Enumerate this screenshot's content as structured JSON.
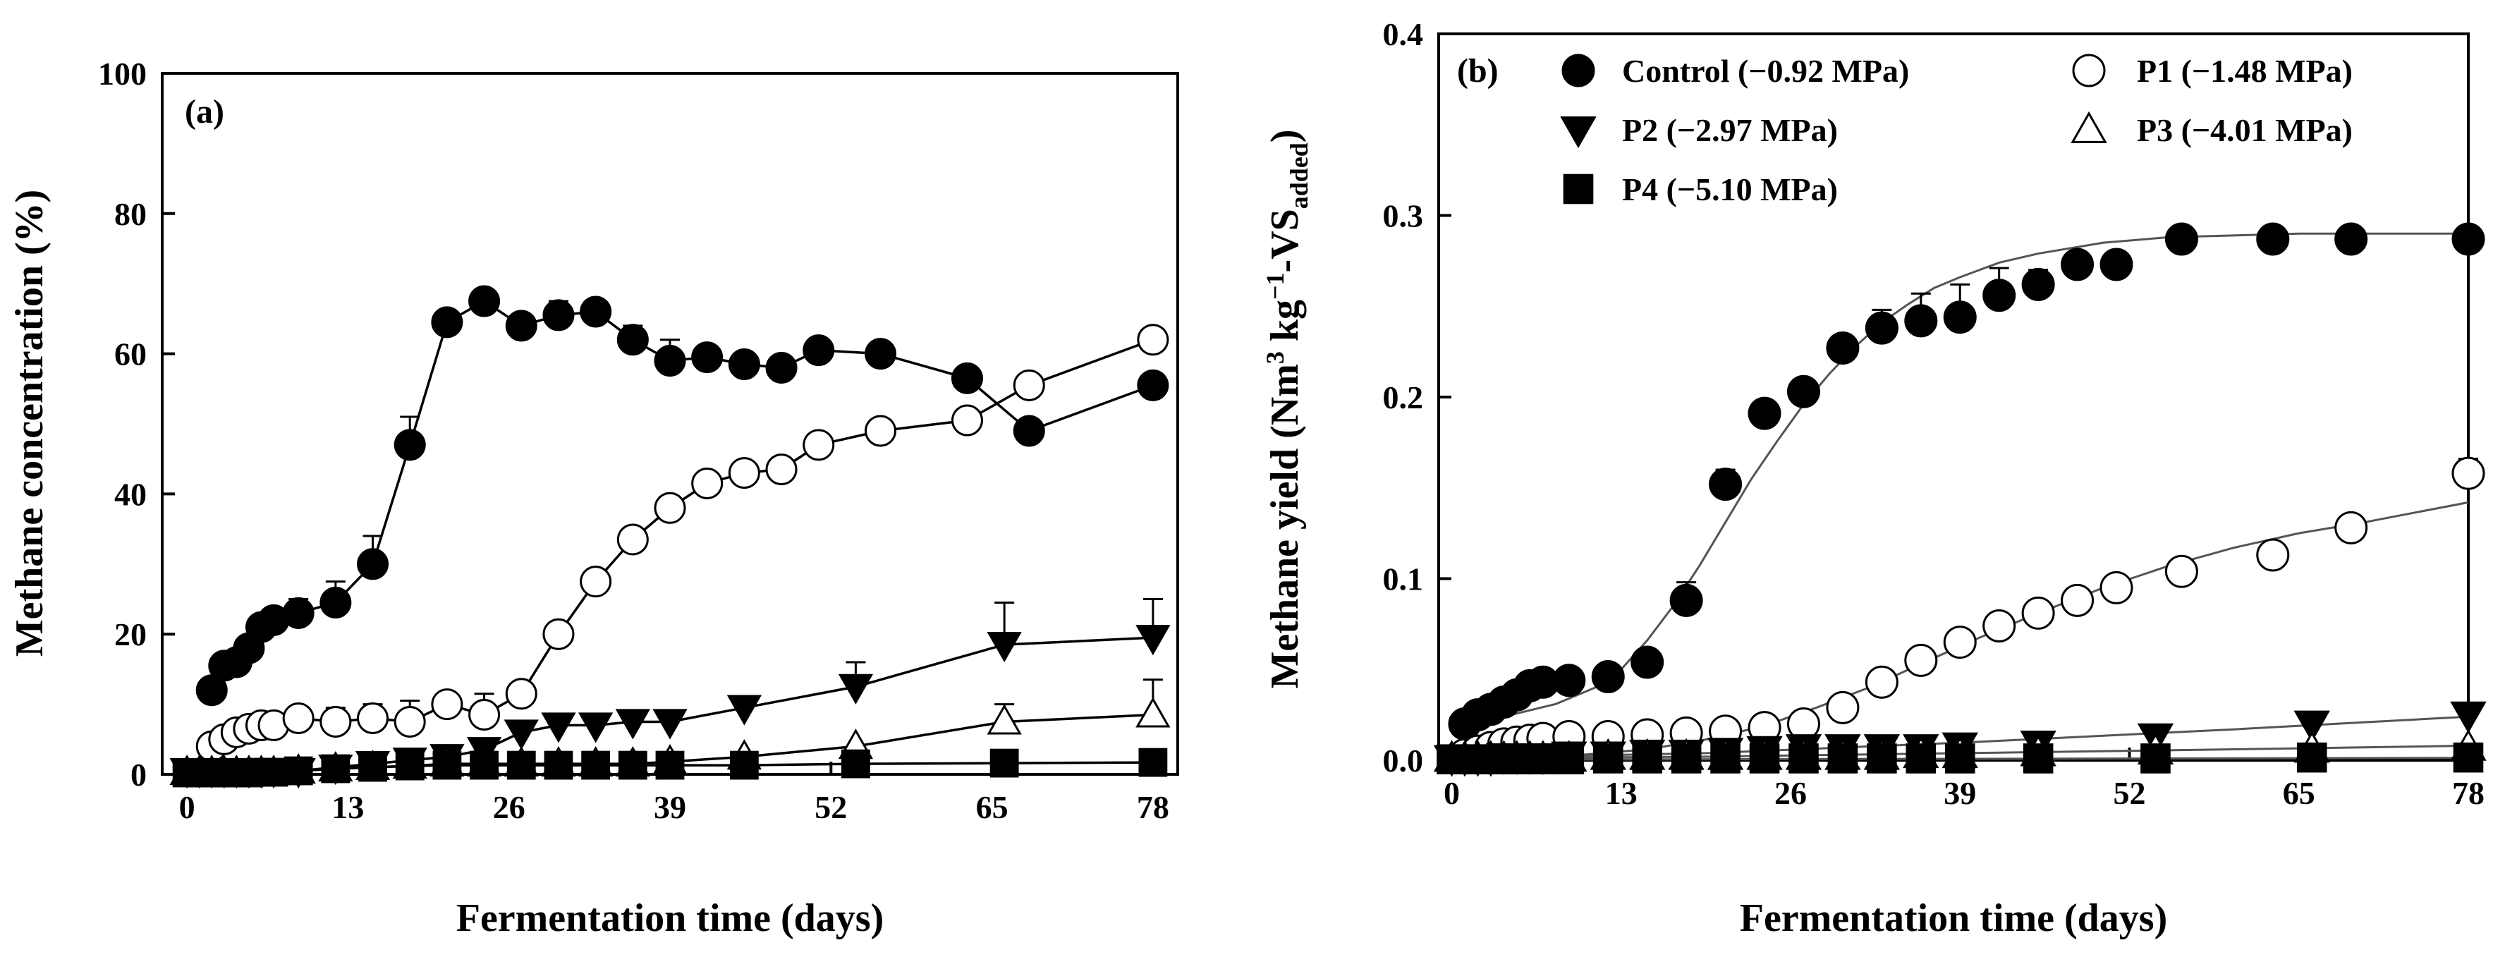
{
  "chart_data": [
    {
      "type": "line",
      "panel_label": "(a)",
      "title": "",
      "xlabel": "Fermentation time (days)",
      "ylabel": "Methane concentration (%)",
      "xlim": [
        -2,
        80
      ],
      "ylim": [
        0,
        100
      ],
      "xticks": [
        "0",
        "13",
        "26",
        "39",
        "52",
        "65",
        "78"
      ],
      "xtick_values": [
        0,
        13,
        26,
        39,
        52,
        65,
        78
      ],
      "yticks": [
        "0",
        "20",
        "40",
        "60",
        "80",
        "100"
      ],
      "ytick_values": [
        0,
        20,
        40,
        60,
        80,
        100
      ],
      "series": [
        {
          "name": "Control",
          "marker": "circle-filled",
          "x": [
            2,
            3,
            4,
            5,
            6,
            7,
            9,
            12,
            15,
            18,
            21,
            24,
            27,
            30,
            33,
            36,
            39,
            42,
            45,
            48,
            51,
            56,
            63,
            68,
            78
          ],
          "y": [
            12,
            15.5,
            16,
            18,
            21,
            22,
            23,
            24.5,
            30,
            47,
            64.5,
            67.5,
            64,
            65.5,
            66,
            62,
            59,
            59.5,
            58.5,
            58,
            60.5,
            60,
            56.5,
            49,
            55.5
          ],
          "err": [
            0,
            0,
            0,
            0,
            0,
            0,
            2,
            3,
            4,
            4,
            0,
            0,
            0,
            2,
            0,
            2,
            3,
            0,
            0,
            0,
            0,
            0,
            0,
            0,
            0
          ]
        },
        {
          "name": "P1",
          "marker": "circle-open",
          "x": [
            2,
            3,
            4,
            5,
            6,
            7,
            9,
            12,
            15,
            18,
            21,
            24,
            27,
            30,
            33,
            36,
            39,
            42,
            45,
            48,
            51,
            56,
            63,
            68,
            78
          ],
          "y": [
            4,
            5,
            6,
            6.5,
            7,
            7,
            8,
            7.5,
            8,
            7.5,
            10,
            8.5,
            11.5,
            20,
            27.5,
            33.5,
            38,
            41.5,
            43,
            43.5,
            47,
            49,
            50.5,
            55.5,
            62
          ],
          "err": [
            0,
            0,
            0,
            0,
            0,
            0,
            0,
            2,
            2,
            3,
            0,
            3,
            0,
            0,
            0,
            0,
            0,
            0,
            0,
            0,
            0,
            0,
            0,
            0,
            0
          ]
        },
        {
          "name": "P2",
          "marker": "triangle-down-filled",
          "x": [
            0,
            1,
            2,
            3,
            4,
            5,
            6,
            7,
            9,
            12,
            15,
            18,
            21,
            24,
            27,
            30,
            33,
            36,
            39,
            45,
            54,
            66,
            78
          ],
          "y": [
            0.5,
            0.5,
            0.5,
            0.5,
            0.5,
            0.5,
            0.5,
            0.5,
            0.5,
            1,
            1.5,
            2,
            2.5,
            3.5,
            6,
            7,
            7,
            7.5,
            7.5,
            9.5,
            12.5,
            18.5,
            19.5
          ],
          "err": [
            0,
            0,
            0,
            0,
            0,
            0,
            0,
            0,
            0,
            0,
            0,
            0,
            0,
            0,
            0,
            0,
            0,
            0,
            0,
            0,
            3.5,
            6,
            5.5
          ]
        },
        {
          "name": "P3",
          "marker": "triangle-up-open",
          "x": [
            0,
            1,
            2,
            3,
            4,
            5,
            6,
            7,
            9,
            12,
            15,
            18,
            21,
            24,
            27,
            30,
            33,
            36,
            39,
            45,
            54,
            66,
            78
          ],
          "y": [
            0.3,
            0.3,
            0.3,
            0.3,
            0.3,
            0.3,
            0.3,
            0.3,
            0.5,
            0.8,
            1,
            1.2,
            1.5,
            1.5,
            1.5,
            1.5,
            1.5,
            1.5,
            1.8,
            2.5,
            4,
            7.5,
            8.5
          ],
          "err": [
            0,
            0,
            0,
            0,
            0,
            0,
            0,
            0,
            0,
            0,
            0,
            0,
            0,
            0,
            0,
            0,
            0,
            0,
            0,
            0,
            0,
            2.5,
            5
          ]
        },
        {
          "name": "P4",
          "marker": "square-filled",
          "x": [
            0,
            1,
            2,
            3,
            4,
            5,
            6,
            7,
            9,
            12,
            15,
            18,
            21,
            24,
            27,
            30,
            33,
            36,
            39,
            45,
            54,
            66,
            78
          ],
          "y": [
            0.2,
            0.2,
            0.2,
            0.2,
            0.2,
            0.2,
            0.3,
            0.3,
            0.5,
            0.8,
            1,
            1.2,
            1.3,
            1.3,
            1.3,
            1.3,
            1.3,
            1.3,
            1.3,
            1.3,
            1.5,
            1.6,
            1.7
          ],
          "err": [
            0,
            0,
            0,
            0,
            0,
            0,
            0,
            0,
            0,
            0,
            0,
            0,
            0,
            0,
            0,
            0,
            0,
            0,
            0,
            0,
            0,
            0,
            0
          ]
        }
      ]
    },
    {
      "type": "scatter",
      "panel_label": "(b)",
      "title": "",
      "xlabel": "Fermentation time (days)",
      "ylabel_main": "Methane yield (Nm",
      "ylabel_sup1": "3",
      "ylabel_mid": " kg",
      "ylabel_sup2": "−1",
      "ylabel_after": "-VS",
      "ylabel_sub": "added",
      "ylabel_close": ")",
      "xlim": [
        -1,
        78
      ],
      "ylim": [
        0,
        0.4
      ],
      "xticks": [
        "0",
        "13",
        "26",
        "39",
        "52",
        "65",
        "78"
      ],
      "xtick_values": [
        0,
        13,
        26,
        39,
        52,
        65,
        78
      ],
      "yticks": [
        "0.0",
        "0.1",
        "0.2",
        "0.3",
        "0.4"
      ],
      "ytick_values": [
        0,
        0.1,
        0.2,
        0.3,
        0.4
      ],
      "legend": [
        "Control (−0.92 MPa)",
        "P1 (−1.48 MPa)",
        "P2 (−2.97 MPa)",
        "P3 (−4.01 MPa)",
        "P4 (−5.10 MPa)"
      ],
      "series": [
        {
          "name": "Control (−0.92 MPa)",
          "marker": "circle-filled",
          "x": [
            1,
            2,
            3,
            4,
            5,
            6,
            7,
            9,
            12,
            15,
            18,
            21,
            24,
            27,
            30,
            33,
            36,
            39,
            42,
            45,
            48,
            51,
            56,
            63,
            69,
            78
          ],
          "y": [
            0.02,
            0.025,
            0.028,
            0.032,
            0.036,
            0.041,
            0.043,
            0.044,
            0.046,
            0.054,
            0.088,
            0.152,
            0.191,
            0.203,
            0.227,
            0.238,
            0.242,
            0.244,
            0.256,
            0.262,
            0.273,
            0.273,
            0.287,
            0.287,
            0.287,
            0.287
          ],
          "err": [
            0,
            0,
            0,
            0,
            0,
            0,
            0,
            0,
            0,
            0,
            0.01,
            0.008,
            0,
            0,
            0,
            0.01,
            0.015,
            0.018,
            0.015,
            0.008,
            0,
            0,
            0,
            0,
            0,
            0
          ]
        },
        {
          "name": "P1 (−1.48 MPa)",
          "marker": "circle-open",
          "x": [
            1,
            2,
            3,
            4,
            5,
            6,
            7,
            9,
            12,
            15,
            18,
            21,
            24,
            27,
            30,
            33,
            36,
            39,
            42,
            45,
            48,
            51,
            56,
            63,
            69,
            78
          ],
          "y": [
            0.003,
            0.005,
            0.007,
            0.009,
            0.01,
            0.011,
            0.012,
            0.013,
            0.013,
            0.014,
            0.015,
            0.016,
            0.018,
            0.02,
            0.029,
            0.043,
            0.055,
            0.065,
            0.074,
            0.081,
            0.088,
            0.095,
            0.104,
            0.113,
            0.128,
            0.158
          ],
          "err": [
            0,
            0,
            0,
            0,
            0,
            0,
            0,
            0,
            0,
            0,
            0,
            0,
            0,
            0,
            0,
            0,
            0,
            0,
            0,
            0,
            0,
            0,
            0,
            0,
            0,
            0.008
          ]
        },
        {
          "name": "P2 (−2.97 MPa)",
          "marker": "triangle-down-filled",
          "x": [
            0,
            1,
            2,
            3,
            4,
            5,
            6,
            7,
            9,
            12,
            15,
            18,
            21,
            24,
            27,
            30,
            33,
            36,
            39,
            45,
            54,
            66,
            78
          ],
          "y": [
            0.001,
            0.001,
            0.001,
            0.001,
            0.002,
            0.002,
            0.002,
            0.002,
            0.003,
            0.003,
            0.004,
            0.004,
            0.005,
            0.006,
            0.007,
            0.007,
            0.007,
            0.007,
            0.008,
            0.009,
            0.013,
            0.02,
            0.025
          ],
          "err": [
            0,
            0,
            0,
            0,
            0,
            0,
            0,
            0,
            0,
            0,
            0,
            0,
            0,
            0,
            0,
            0,
            0,
            0,
            0,
            0,
            0,
            0,
            0
          ]
        },
        {
          "name": "P3 (−4.01 MPa)",
          "marker": "triangle-up-open",
          "x": [
            0,
            1,
            2,
            3,
            4,
            5,
            6,
            7,
            9,
            12,
            15,
            18,
            21,
            24,
            27,
            30,
            33,
            36,
            39,
            45,
            54,
            66,
            78
          ],
          "y": [
            0.001,
            0.001,
            0.001,
            0.001,
            0.001,
            0.001,
            0.001,
            0.001,
            0.001,
            0.002,
            0.002,
            0.002,
            0.002,
            0.002,
            0.002,
            0.002,
            0.002,
            0.003,
            0.003,
            0.004,
            0.005,
            0.006,
            0.007
          ],
          "err": [
            0,
            0,
            0,
            0,
            0,
            0,
            0,
            0,
            0,
            0,
            0,
            0,
            0,
            0,
            0,
            0,
            0,
            0,
            0,
            0,
            0,
            0,
            0
          ]
        },
        {
          "name": "P4 (−5.10 MPa)",
          "marker": "square-filled",
          "x": [
            0,
            1,
            2,
            3,
            4,
            5,
            6,
            7,
            9,
            12,
            15,
            18,
            21,
            24,
            27,
            30,
            33,
            36,
            39,
            45,
            54,
            66,
            78
          ],
          "y": [
            0.0005,
            0.0005,
            0.0005,
            0.0005,
            0.0005,
            0.0005,
            0.0005,
            0.0005,
            0.0005,
            0.001,
            0.001,
            0.001,
            0.001,
            0.001,
            0.001,
            0.001,
            0.001,
            0.001,
            0.001,
            0.001,
            0.001,
            0.0015,
            0.0015
          ],
          "err": [
            0,
            0,
            0,
            0,
            0,
            0,
            0,
            0,
            0,
            0,
            0,
            0,
            0,
            0,
            0,
            0,
            0,
            0,
            0,
            0,
            0,
            0,
            0
          ]
        }
      ],
      "fit_curves": [
        {
          "name": "Control fit",
          "x": [
            0,
            4,
            8,
            11,
            13,
            15,
            17,
            19,
            21,
            23,
            25,
            27,
            29,
            31,
            33,
            35,
            37,
            39,
            42,
            45,
            50,
            55,
            60,
            65,
            70,
            78
          ],
          "y": [
            0.02,
            0.024,
            0.031,
            0.04,
            0.05,
            0.066,
            0.085,
            0.107,
            0.131,
            0.155,
            0.176,
            0.196,
            0.213,
            0.228,
            0.241,
            0.251,
            0.26,
            0.266,
            0.274,
            0.279,
            0.285,
            0.288,
            0.289,
            0.29,
            0.29,
            0.29
          ]
        },
        {
          "name": "P1 fit",
          "x": [
            0,
            10,
            15,
            20,
            24,
            28,
            32,
            36,
            40,
            45,
            50,
            55,
            60,
            65,
            70,
            78
          ],
          "y": [
            0.001,
            0.003,
            0.006,
            0.012,
            0.019,
            0.029,
            0.04,
            0.053,
            0.066,
            0.081,
            0.095,
            0.107,
            0.117,
            0.125,
            0.131,
            0.142
          ]
        },
        {
          "name": "P2 fit",
          "x": [
            0,
            20,
            40,
            60,
            78
          ],
          "y": [
            0.001,
            0.004,
            0.01,
            0.017,
            0.024
          ]
        },
        {
          "name": "P3 fit",
          "x": [
            0,
            20,
            40,
            60,
            78
          ],
          "y": [
            0.001,
            0.002,
            0.004,
            0.006,
            0.008
          ]
        },
        {
          "name": "P4 fit",
          "x": [
            0,
            40,
            78
          ],
          "y": [
            0.0003,
            0.0008,
            0.0013
          ]
        }
      ]
    }
  ]
}
